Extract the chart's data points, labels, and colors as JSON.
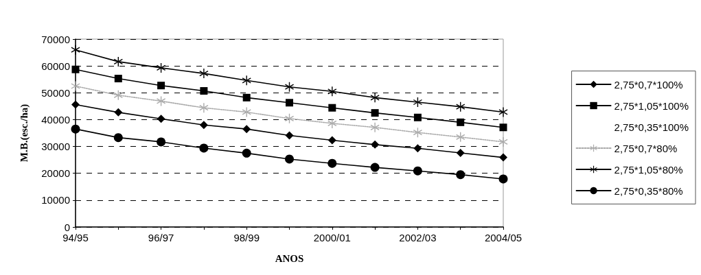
{
  "chart_data": {
    "type": "line",
    "xlabel": "ANOS",
    "ylabel": "M.B.(esc./ha)",
    "categories": [
      "94/95",
      null,
      "96/97",
      null,
      "98/99",
      null,
      "2000/01",
      null,
      "2002/03",
      null,
      "2004/05"
    ],
    "ylim": [
      0,
      70000
    ],
    "yticks": [
      0,
      10000,
      20000,
      30000,
      40000,
      50000,
      60000,
      70000
    ],
    "grid": "y",
    "legend": "right",
    "series": [
      {
        "name": "2,75*0,7*100%",
        "color": "#000000",
        "marker": "diamond",
        "line_style": "solid",
        "values": [
          45600,
          42700,
          40300,
          38000,
          36500,
          34100,
          32300,
          30700,
          29300,
          27600,
          25900
        ]
      },
      {
        "name": "2,75*1,05*100%",
        "color": "#000000",
        "marker": "square",
        "line_style": "solid",
        "values": [
          58700,
          55300,
          52700,
          50700,
          48200,
          46300,
          44400,
          42500,
          40800,
          39000,
          37100
        ]
      },
      {
        "name": "2,75*0,35*100%",
        "marker": "none",
        "line_style": "solid",
        "values": [
          null,
          null,
          null,
          null,
          null,
          null,
          null,
          null,
          null,
          null,
          null
        ]
      },
      {
        "name": "2,75*0,7*80%",
        "color": "#aaaaaa",
        "marker": "cross",
        "line_style": "dotted",
        "values": [
          52500,
          49100,
          46900,
          44400,
          42800,
          40400,
          38600,
          37100,
          35200,
          33500,
          31700
        ]
      },
      {
        "name": "2,75*1,05*80%",
        "color": "#000000",
        "marker": "cross",
        "line_style": "solid",
        "values": [
          66000,
          61600,
          59300,
          57200,
          54600,
          52200,
          50500,
          48200,
          46500,
          44800,
          42800
        ]
      },
      {
        "name": "2,75*0,35*80%",
        "color": "#000000",
        "marker": "circle",
        "line_style": "solid",
        "values": [
          36500,
          33300,
          31700,
          29400,
          27500,
          25300,
          23700,
          22200,
          20900,
          19500,
          17900
        ]
      }
    ]
  }
}
